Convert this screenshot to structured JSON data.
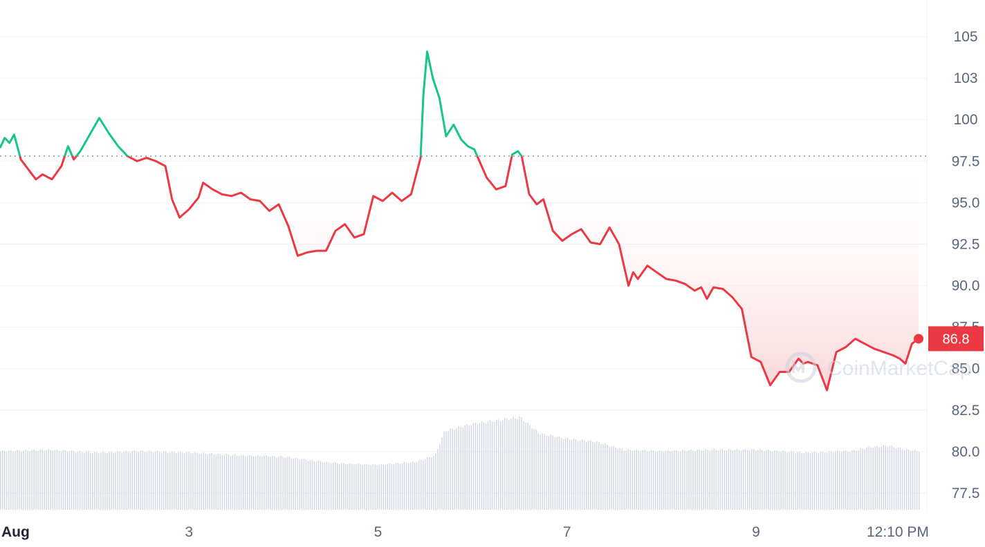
{
  "chart_data": {
    "type": "line",
    "title": "",
    "xlabel": "",
    "ylabel": "",
    "reference_price": 97.8,
    "ylim": [
      76.5,
      107
    ],
    "y_ticks": [
      "105",
      "103",
      "100",
      "97.5",
      "95.0",
      "92.5",
      "90.0",
      "87.5",
      "85.0",
      "82.5",
      "80.0",
      "77.5"
    ],
    "y_tick_values": [
      105,
      102.5,
      100,
      97.5,
      95,
      92.5,
      90,
      87.5,
      85,
      82.5,
      80,
      77.5
    ],
    "x_ticks": [
      {
        "label": "Aug",
        "t": 0,
        "bold": true
      },
      {
        "label": "3",
        "t": 2
      },
      {
        "label": "5",
        "t": 4
      },
      {
        "label": "7",
        "t": 6
      },
      {
        "label": "9",
        "t": 8
      },
      {
        "label": "12:10 PM",
        "t": 9.5
      }
    ],
    "x_range": [
      0,
      10
    ],
    "price_series": {
      "name": "",
      "x": [
        0,
        0.05,
        0.1,
        0.15,
        0.22,
        0.3,
        0.38,
        0.45,
        0.55,
        0.65,
        0.72,
        0.78,
        0.85,
        0.95,
        1.05,
        1.15,
        1.25,
        1.35,
        1.45,
        1.55,
        1.65,
        1.75,
        1.82,
        1.9,
        2.0,
        2.1,
        2.15,
        2.25,
        2.35,
        2.45,
        2.55,
        2.65,
        2.75,
        2.85,
        2.95,
        3.05,
        3.15,
        3.25,
        3.35,
        3.45,
        3.55,
        3.65,
        3.75,
        3.85,
        3.95,
        4.05,
        4.15,
        4.25,
        4.35,
        4.45,
        4.48,
        4.52,
        4.58,
        4.65,
        4.72,
        4.8,
        4.88,
        4.95,
        5.02,
        5.05,
        5.15,
        5.25,
        5.35,
        5.42,
        5.48,
        5.52,
        5.6,
        5.68,
        5.75,
        5.85,
        5.95,
        6.05,
        6.15,
        6.25,
        6.35,
        6.45,
        6.55,
        6.65,
        6.7,
        6.75,
        6.85,
        6.95,
        7.05,
        7.15,
        7.25,
        7.35,
        7.42,
        7.48,
        7.55,
        7.65,
        7.75,
        7.85,
        7.95,
        8.05,
        8.15,
        8.25,
        8.35,
        8.45,
        8.5,
        8.55,
        8.65,
        8.75,
        8.85,
        8.95,
        9.05,
        9.15,
        9.25,
        9.35,
        9.45,
        9.52,
        9.58,
        9.65,
        9.72
      ],
      "values": [
        98.3,
        98.9,
        98.6,
        99.1,
        97.6,
        97.0,
        96.4,
        96.7,
        96.4,
        97.2,
        98.4,
        97.6,
        98.1,
        99.1,
        100.1,
        99.2,
        98.4,
        97.8,
        97.5,
        97.7,
        97.5,
        97.2,
        95.2,
        94.1,
        94.6,
        95.3,
        96.2,
        95.8,
        95.5,
        95.4,
        95.6,
        95.2,
        95.1,
        94.5,
        94.9,
        93.6,
        91.8,
        92.0,
        92.1,
        92.1,
        93.3,
        93.7,
        92.9,
        93.1,
        95.4,
        95.1,
        95.6,
        95.1,
        95.5,
        97.7,
        101.5,
        104.1,
        102.5,
        101.3,
        99.0,
        99.7,
        98.8,
        98.4,
        98.2,
        97.8,
        96.5,
        95.8,
        96.0,
        97.9,
        98.1,
        97.8,
        95.5,
        94.9,
        95.2,
        93.3,
        92.7,
        93.1,
        93.4,
        92.6,
        92.5,
        93.5,
        92.5,
        90.0,
        90.8,
        90.4,
        91.2,
        90.8,
        90.4,
        90.3,
        90.1,
        89.7,
        89.9,
        89.2,
        89.9,
        89.8,
        89.3,
        88.6,
        85.7,
        85.4,
        84.0,
        84.8,
        84.8,
        85.6,
        85.3,
        85.4,
        85.2,
        83.7,
        86.0,
        86.3,
        86.8,
        86.5,
        86.2,
        86.0,
        85.8,
        85.6,
        85.3,
        86.5,
        86.8
      ]
    },
    "last_price": {
      "label": "86.8",
      "value": 86.8
    },
    "volume_series": {
      "x": [
        0,
        0.5,
        1.0,
        1.5,
        2.0,
        2.5,
        3.0,
        3.3,
        3.6,
        4.0,
        4.2,
        4.4,
        4.6,
        4.7,
        5.0,
        5.3,
        5.5,
        5.7,
        6.0,
        6.3,
        6.6,
        7.0,
        7.5,
        8.0,
        8.5,
        9.0,
        9.2,
        9.4,
        9.6,
        9.72
      ],
      "values": [
        0.43,
        0.44,
        0.42,
        0.43,
        0.42,
        0.4,
        0.39,
        0.36,
        0.34,
        0.33,
        0.34,
        0.35,
        0.4,
        0.58,
        0.63,
        0.66,
        0.68,
        0.56,
        0.52,
        0.5,
        0.44,
        0.43,
        0.44,
        0.44,
        0.42,
        0.43,
        0.46,
        0.47,
        0.44,
        0.43
      ]
    },
    "colors": {
      "up": "#16c784",
      "down": "#ea3943",
      "grid": "#eff2f5",
      "reference": "#8a939f",
      "volume": "#cfd6e4",
      "area_top": "#fce9ea",
      "area_bottom": "#f8c9cc"
    },
    "grid": true,
    "legend": "none"
  },
  "watermark": {
    "text": "CoinMarketCap",
    "icon": "coinmarketcap-logo-icon"
  }
}
